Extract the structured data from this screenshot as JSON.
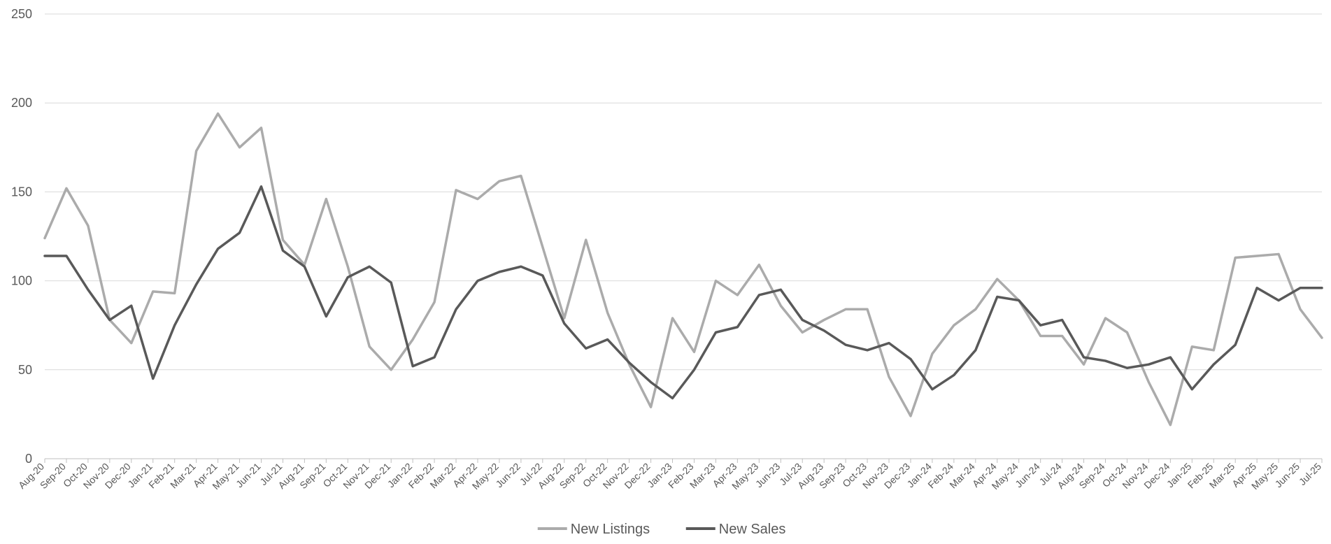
{
  "chart_data": {
    "type": "line",
    "categories": [
      "Aug-20",
      "Sep-20",
      "Oct-20",
      "Nov-20",
      "Dec-20",
      "Jan-21",
      "Feb-21",
      "Mar-21",
      "Apr-21",
      "May-21",
      "Jun-21",
      "Jul-21",
      "Aug-21",
      "Sep-21",
      "Oct-21",
      "Nov-21",
      "Dec-21",
      "Jan-22",
      "Feb-22",
      "Mar-22",
      "Apr-22",
      "May-22",
      "Jun-22",
      "Jul-22",
      "Aug-22",
      "Sep-22",
      "Oct-22",
      "Nov-22",
      "Dec-22",
      "Jan-23",
      "Feb-23",
      "Mar-23",
      "Apr-23",
      "May-23",
      "Jun-23",
      "Jul-23",
      "Aug-23",
      "Sep-23",
      "Oct-23",
      "Nov-23",
      "Dec-23",
      "Jan-24",
      "Feb-24",
      "Mar-24",
      "Apr-24",
      "May-24",
      "Jun-24",
      "Jul-24",
      "Aug-24",
      "Sep-24",
      "Oct-24",
      "Nov-24",
      "Dec-24",
      "Jan-25",
      "Feb-25",
      "Mar-25",
      "Apr-25",
      "May-25",
      "Jun-25",
      "Jul-25"
    ],
    "series": [
      {
        "name": "New Listings",
        "color": "#ababab",
        "values": [
          124,
          152,
          131,
          78,
          65,
          94,
          93,
          173,
          194,
          175,
          186,
          123,
          109,
          146,
          108,
          63,
          50,
          67,
          88,
          151,
          146,
          156,
          159,
          119,
          79,
          123,
          82,
          53,
          29,
          79,
          60,
          100,
          92,
          109,
          86,
          71,
          78,
          84,
          84,
          46,
          24,
          59,
          75,
          84,
          101,
          89,
          69,
          69,
          53,
          79,
          71,
          43,
          19,
          63,
          61,
          113,
          114,
          115,
          84,
          68
        ]
      },
      {
        "name": "New Sales",
        "color": "#595959",
        "values": [
          114,
          114,
          95,
          78,
          86,
          45,
          75,
          98,
          118,
          127,
          153,
          117,
          108,
          80,
          102,
          108,
          99,
          52,
          57,
          84,
          100,
          105,
          108,
          103,
          76,
          62,
          67,
          54,
          43,
          34,
          50,
          71,
          74,
          92,
          95,
          78,
          72,
          64,
          61,
          65,
          56,
          39,
          47,
          61,
          91,
          89,
          75,
          78,
          57,
          55,
          51,
          53,
          57,
          39,
          53,
          64,
          96,
          89,
          96,
          96
        ]
      }
    ],
    "ylim": [
      0,
      250
    ],
    "yticks": [
      0,
      50,
      100,
      150,
      200,
      250
    ],
    "grid": true,
    "legend_position": "bottom"
  }
}
